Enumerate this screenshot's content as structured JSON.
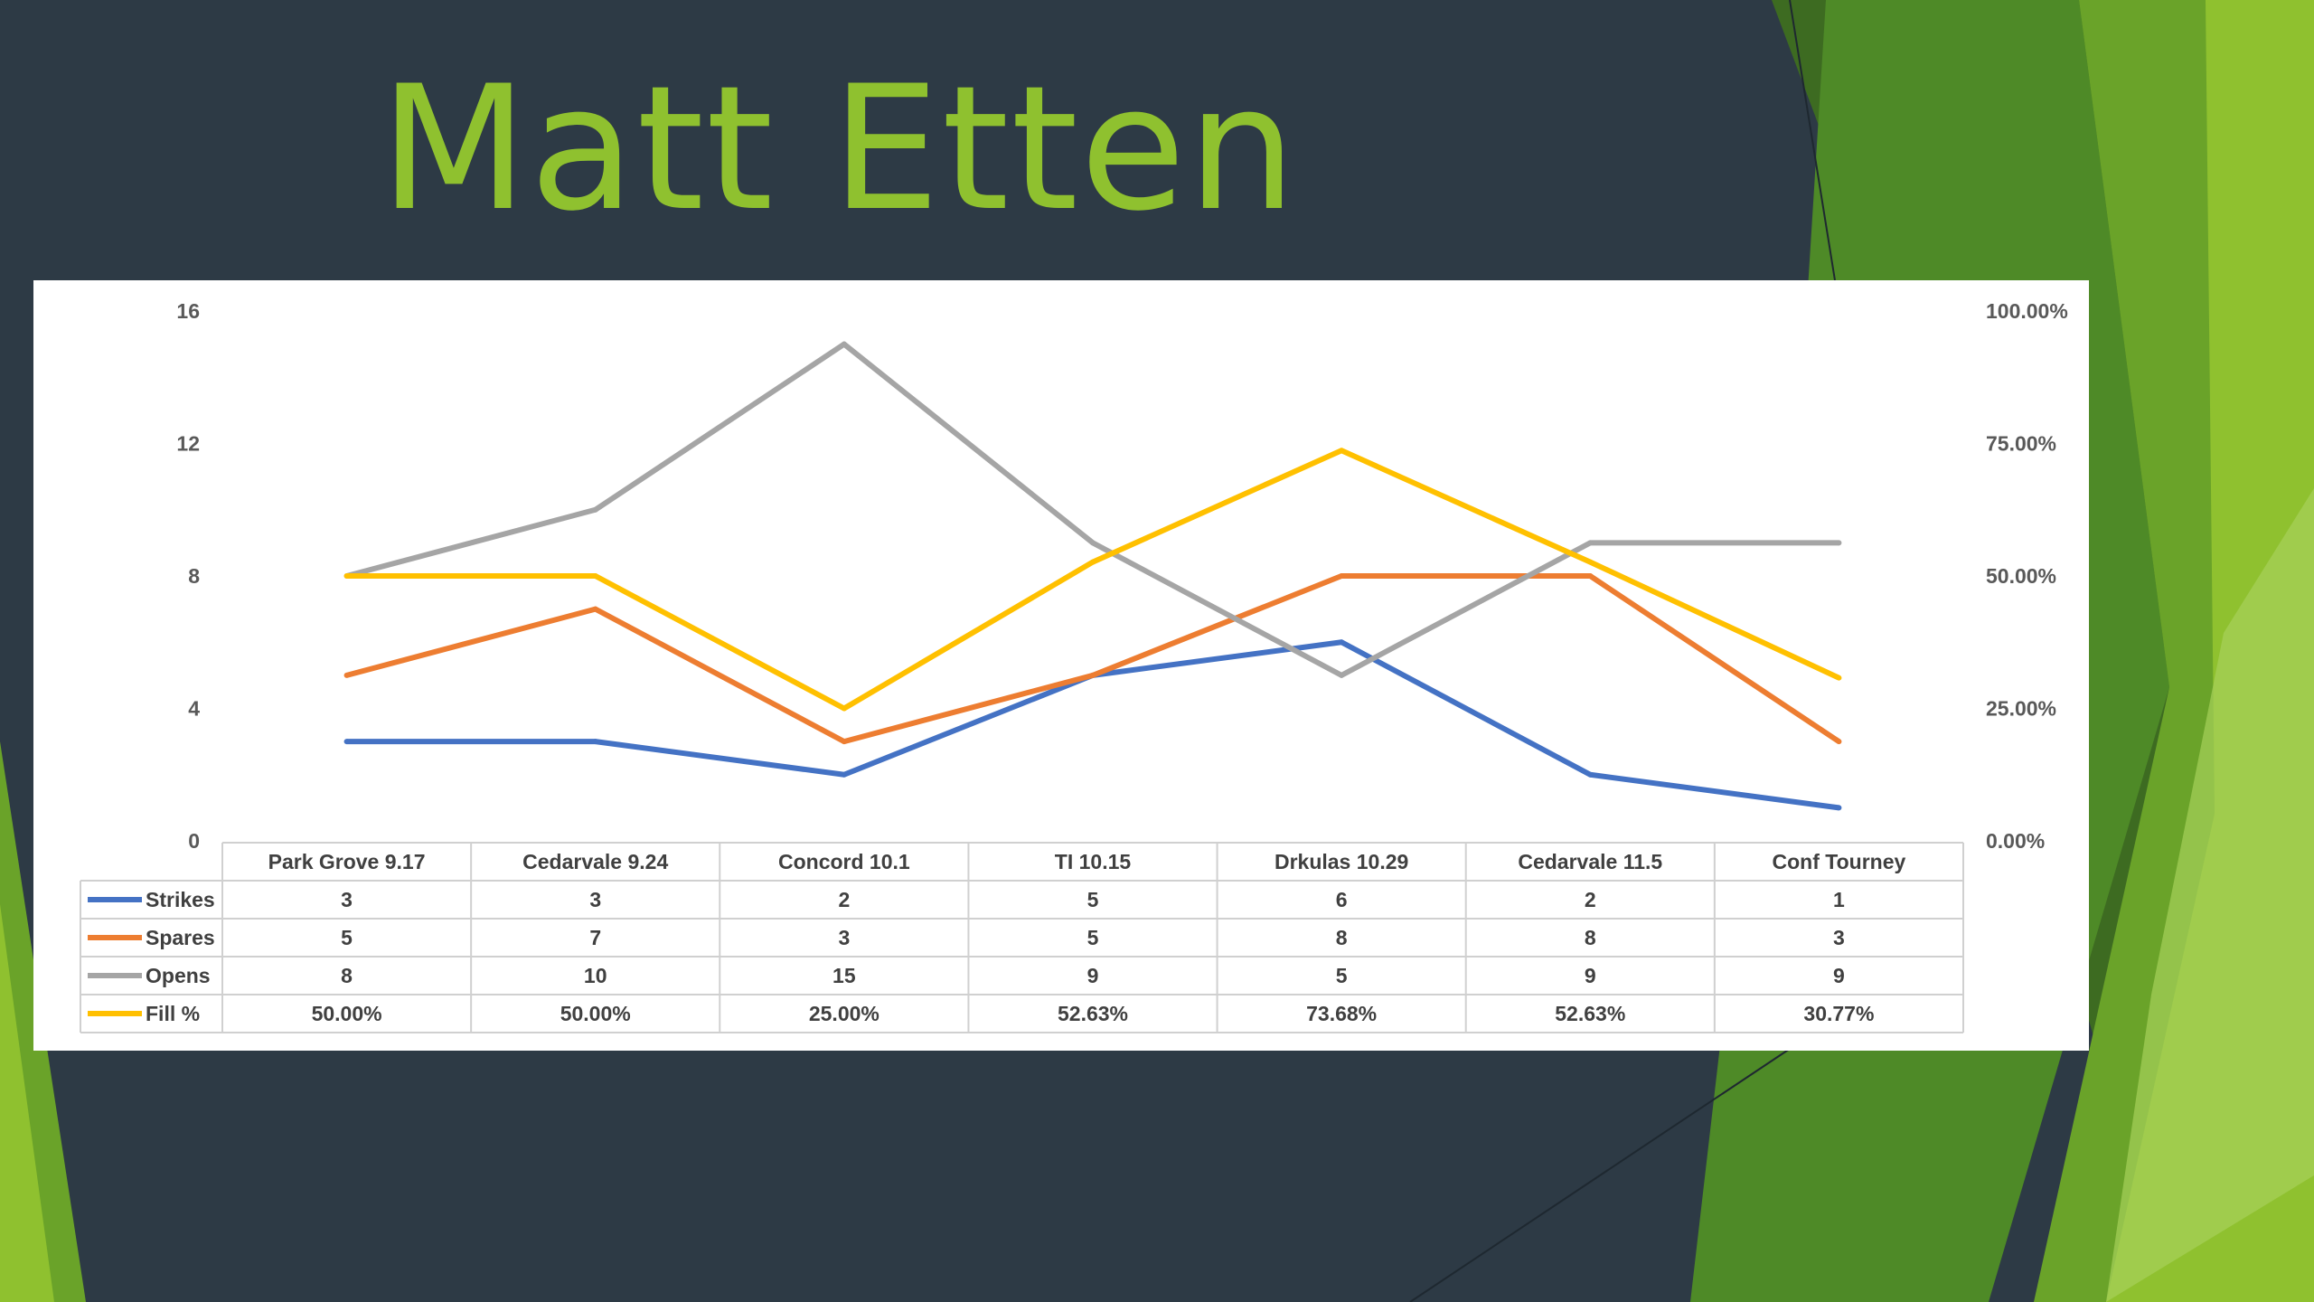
{
  "slide": {
    "title": "Matt Etten"
  },
  "colors": {
    "background": "#2d3a45",
    "title": "#8fc12f",
    "accent_greens": [
      "#3d6b21",
      "#4e8a27",
      "#6aa329",
      "#8fc12f",
      "#a6d05a"
    ]
  },
  "chart_data": {
    "type": "line",
    "categories": [
      "Park Grove 9.17",
      "Cedarvale 9.24",
      "Concord 10.1",
      "TI 10.15",
      "Drkulas 10.29",
      "Cedarvale 11.5",
      "Conf Tourney"
    ],
    "series": [
      {
        "name": "Strikes",
        "color": "#4472c4",
        "axis": "left",
        "values": [
          3,
          3,
          2,
          5,
          6,
          2,
          1
        ],
        "labels": [
          "3",
          "3",
          "2",
          "5",
          "6",
          "2",
          "1"
        ]
      },
      {
        "name": "Spares",
        "color": "#ed7d31",
        "axis": "left",
        "values": [
          5,
          7,
          3,
          5,
          8,
          8,
          3
        ],
        "labels": [
          "5",
          "7",
          "3",
          "5",
          "8",
          "8",
          "3"
        ]
      },
      {
        "name": "Opens",
        "color": "#a5a5a5",
        "axis": "left",
        "values": [
          8,
          10,
          15,
          9,
          5,
          9,
          9
        ],
        "labels": [
          "8",
          "10",
          "15",
          "9",
          "5",
          "9",
          "9"
        ]
      },
      {
        "name": "Fill %",
        "color": "#ffc000",
        "axis": "right",
        "values": [
          50.0,
          50.0,
          25.0,
          52.63,
          73.68,
          52.63,
          30.77
        ],
        "labels": [
          "50.00%",
          "50.00%",
          "25.00%",
          "52.63%",
          "73.68%",
          "52.63%",
          "30.77%"
        ]
      }
    ],
    "y_left": {
      "ylim": [
        0,
        16
      ],
      "ticks": [
        "0",
        "4",
        "8",
        "12",
        "16"
      ]
    },
    "y_right": {
      "ylim": [
        0,
        100
      ],
      "ticks": [
        "0.00%",
        "25.00%",
        "50.00%",
        "75.00%",
        "100.00%"
      ]
    },
    "data_table": true,
    "grid": false
  }
}
